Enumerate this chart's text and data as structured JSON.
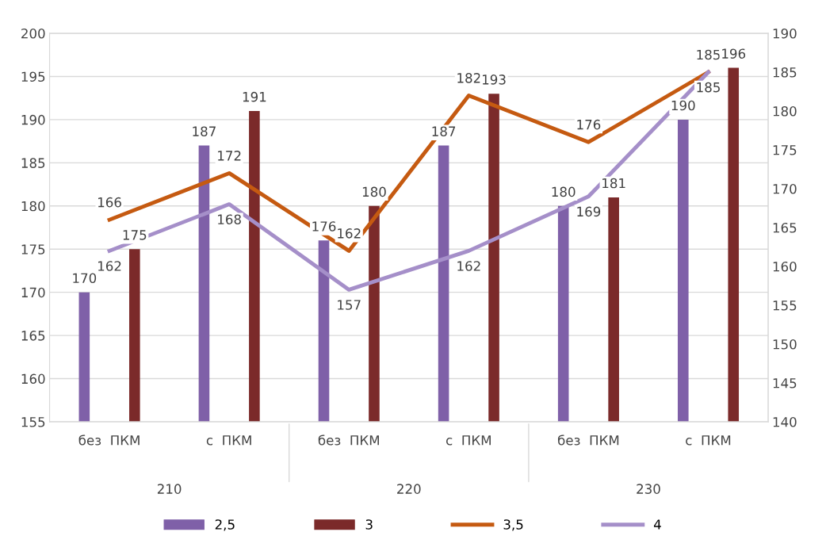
{
  "chart_data": {
    "type": "bar",
    "categories": [
      "без  ПКМ",
      "с  ПКМ",
      "без  ПКМ",
      "с  ПКМ",
      "без  ПКМ",
      "с  ПКМ"
    ],
    "series": [
      {
        "name": "2,5",
        "color": "#7f60a8",
        "values": [
          170,
          187,
          176,
          187,
          180,
          190
        ]
      },
      {
        "name": "3",
        "color": "#7b2a2a",
        "values": [
          175,
          191,
          180,
          193,
          181,
          196
        ]
      },
      {
        "name": "3,5",
        "type": "line",
        "axis": "y2",
        "color": "#c55a11",
        "values": [
          166,
          172,
          162,
          182,
          176,
          185
        ]
      },
      {
        "name": "4",
        "type": "line",
        "axis": "y2",
        "color": "#a58fc9",
        "values": [
          162,
          168,
          157,
          162,
          169,
          185
        ]
      }
    ],
    "annotations": [
      "210",
      "220",
      "230"
    ],
    "ylim": [
      155,
      200
    ],
    "yticks": [
      155,
      160,
      165,
      170,
      175,
      180,
      185,
      190,
      195,
      200
    ],
    "y2lim": [
      140,
      190
    ],
    "y2ticks": [
      140,
      145,
      150,
      155,
      160,
      165,
      170,
      175,
      180,
      185,
      190
    ],
    "data_labels": true,
    "grid": "y",
    "legend": "bottom",
    "marker": "none",
    "line_style": "solid"
  }
}
